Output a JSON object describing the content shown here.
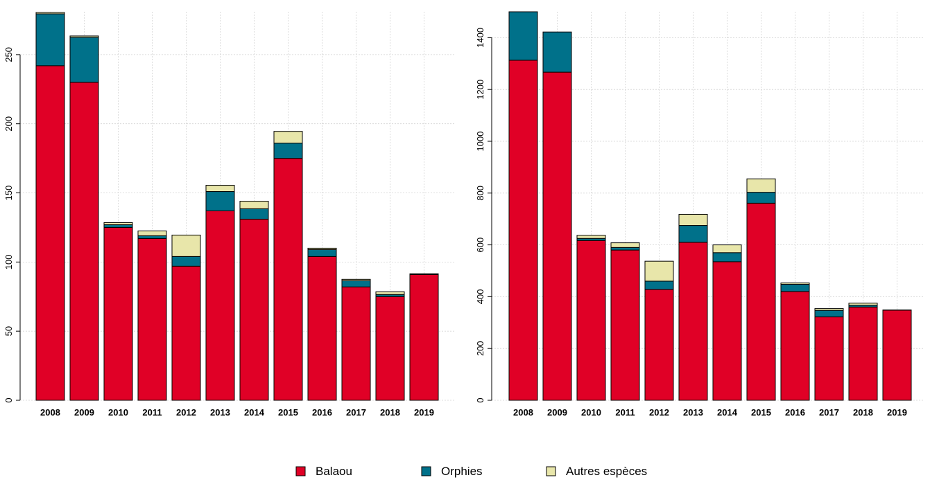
{
  "colors": {
    "Balaou": "#E00026",
    "Orphies": "#00718A",
    "Autres espèces": "#E8E6AA",
    "grid": "#D3D3D3",
    "outline": "#000000"
  },
  "legend": [
    "Balaou",
    "Orphies",
    "Autres espèces"
  ],
  "chart_data": [
    {
      "type": "bar",
      "stacked": true,
      "grid": true,
      "legend_position": "bottom",
      "categories": [
        "2008",
        "2009",
        "2010",
        "2011",
        "2012",
        "2013",
        "2014",
        "2015",
        "2016",
        "2017",
        "2018",
        "2019"
      ],
      "series": [
        {
          "name": "Balaou",
          "values": [
            242,
            230,
            125,
            117,
            97,
            137,
            131,
            175,
            104,
            82,
            75,
            91
          ]
        },
        {
          "name": "Orphies",
          "values": [
            37.5,
            32.5,
            2,
            2,
            7,
            14,
            7.5,
            11,
            5,
            4.5,
            1.5,
            0.5
          ]
        },
        {
          "name": "Autres espèces",
          "values": [
            1,
            1,
            1.5,
            3.5,
            15.5,
            4.5,
            5.5,
            8.5,
            1,
            1,
            2,
            0
          ]
        }
      ],
      "ylim": [
        0,
        281
      ],
      "yticks": [
        0,
        50,
        100,
        150,
        200,
        250
      ]
    },
    {
      "type": "bar",
      "stacked": true,
      "grid": true,
      "legend_position": "bottom",
      "categories": [
        "2008",
        "2009",
        "2010",
        "2011",
        "2012",
        "2013",
        "2014",
        "2015",
        "2016",
        "2017",
        "2018",
        "2019"
      ],
      "series": [
        {
          "name": "Balaou",
          "values": [
            1313,
            1267,
            617,
            580,
            428,
            610,
            535,
            761,
            420,
            322,
            360,
            348
          ]
        },
        {
          "name": "Orphies",
          "values": [
            195,
            155,
            8,
            10,
            32,
            65,
            35,
            42,
            28,
            25,
            7,
            1
          ]
        },
        {
          "name": "Autres espèces",
          "values": [
            0,
            0,
            12,
            18,
            77,
            43,
            30,
            52,
            5,
            7,
            8,
            0
          ]
        }
      ],
      "ylim": [
        0,
        1500
      ],
      "yticks": [
        0,
        200,
        400,
        600,
        800,
        1000,
        1200,
        1400
      ]
    }
  ]
}
